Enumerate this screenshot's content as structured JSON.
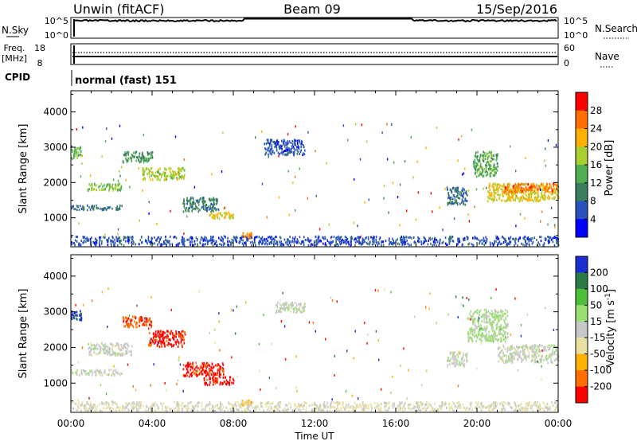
{
  "header": {
    "station": "Unwin (fitACF)",
    "beam": "Beam 09",
    "date": "15/Sep/2016"
  },
  "noise_panel": {
    "left_label": "N.Sky",
    "right_label": "N.Search",
    "left_ticks": [
      "10^5",
      "10^0"
    ],
    "right_ticks": [
      "10^5",
      "10^0"
    ]
  },
  "freq_panel": {
    "left_label_line1": "Freq.",
    "left_label_line2": "[MHz]",
    "right_label": "Nave",
    "left_ticks": [
      "18",
      "8"
    ],
    "right_ticks": [
      "60",
      "0"
    ]
  },
  "cpid": {
    "label": "CPID",
    "value": "normal (fast) 151"
  },
  "x_axis": {
    "label": "Time UT",
    "ticks": [
      "00:00",
      "04:00",
      "08:00",
      "12:00",
      "16:00",
      "20:00",
      "00:00"
    ]
  },
  "colors": {
    "power": [
      "#0000ff",
      "#2a52be",
      "#3a7d5c",
      "#4fae4f",
      "#a8d030",
      "#ffb000",
      "#ff7000",
      "#ff0000"
    ],
    "velocity": [
      "#1a2dd0",
      "#2a7a48",
      "#4fbf3a",
      "#9ae070",
      "#c8c8c8",
      "#e8e0a0",
      "#ffb000",
      "#ff7000",
      "#ff0000"
    ]
  },
  "chart_data": [
    {
      "type": "heatmap",
      "ylabel": "Slant Range [km]",
      "yticks": [
        1000,
        2000,
        3000,
        4000
      ],
      "ylim": [
        180,
        4600
      ],
      "xlim": [
        0,
        24
      ],
      "colorbar_label": "Power [dB]",
      "colorbar_ticks": [
        4,
        8,
        12,
        16,
        20,
        24,
        28
      ],
      "clim": [
        0,
        32
      ],
      "regions": [
        {
          "t0": 0.0,
          "t1": 0.5,
          "r0": 2700,
          "r1": 3050,
          "value": 14
        },
        {
          "t0": 0.0,
          "t1": 2.5,
          "r0": 1250,
          "r1": 1380,
          "value": 9
        },
        {
          "t0": 0.8,
          "t1": 2.5,
          "r0": 1800,
          "r1": 2000,
          "value": 16
        },
        {
          "t0": 2.5,
          "t1": 4.0,
          "r0": 2600,
          "r1": 2900,
          "value": 12
        },
        {
          "t0": 3.5,
          "t1": 5.6,
          "r0": 2100,
          "r1": 2450,
          "value": 18
        },
        {
          "t0": 5.5,
          "t1": 7.2,
          "r0": 1200,
          "r1": 1600,
          "value": 10
        },
        {
          "t0": 6.8,
          "t1": 8.0,
          "r0": 1000,
          "r1": 1200,
          "value": 20
        },
        {
          "t0": 8.4,
          "t1": 8.9,
          "r0": 450,
          "r1": 600,
          "value": 24
        },
        {
          "t0": 9.5,
          "t1": 11.5,
          "r0": 2800,
          "r1": 3250,
          "value": 6
        },
        {
          "t0": 0.0,
          "t1": 24.0,
          "r0": 250,
          "r1": 500,
          "value": 6
        },
        {
          "t0": 18.5,
          "t1": 19.5,
          "r0": 1400,
          "r1": 1900,
          "value": 8
        },
        {
          "t0": 19.8,
          "t1": 21.0,
          "r0": 2200,
          "r1": 2900,
          "value": 14
        },
        {
          "t0": 20.5,
          "t1": 24.0,
          "r0": 1500,
          "r1": 2000,
          "value": 20
        },
        {
          "t0": 21.3,
          "t1": 24.0,
          "r0": 1750,
          "r1": 2000,
          "value": 26
        }
      ]
    },
    {
      "type": "heatmap",
      "ylabel": "Slant Range [km]",
      "yticks": [
        1000,
        2000,
        3000,
        4000
      ],
      "ylim": [
        180,
        4600
      ],
      "xlim": [
        0,
        24
      ],
      "colorbar_label": "Velocity [m s^-1]",
      "colorbar_ticks": [
        200,
        100,
        50,
        15,
        -15,
        -50,
        -100,
        -200
      ],
      "clim": [
        -250,
        250
      ],
      "regions": [
        {
          "t0": 0.0,
          "t1": 0.5,
          "r0": 2800,
          "r1": 3050,
          "value": 220
        },
        {
          "t0": 0.0,
          "t1": 2.5,
          "r0": 1250,
          "r1": 1400,
          "value": 0
        },
        {
          "t0": 0.8,
          "t1": 3.0,
          "r0": 1800,
          "r1": 2150,
          "value": 0
        },
        {
          "t0": 2.5,
          "t1": 4.0,
          "r0": 2600,
          "r1": 2900,
          "value": -180
        },
        {
          "t0": 3.8,
          "t1": 5.6,
          "r0": 2050,
          "r1": 2500,
          "value": -220
        },
        {
          "t0": 5.5,
          "t1": 7.5,
          "r0": 1200,
          "r1": 1600,
          "value": -220
        },
        {
          "t0": 6.5,
          "t1": 8.0,
          "r0": 980,
          "r1": 1200,
          "value": -230
        },
        {
          "t0": 8.4,
          "t1": 8.9,
          "r0": 400,
          "r1": 550,
          "value": -80
        },
        {
          "t0": 10.0,
          "t1": 11.5,
          "r0": 3000,
          "r1": 3300,
          "value": 10
        },
        {
          "t0": 0.0,
          "t1": 24.0,
          "r0": 250,
          "r1": 500,
          "value": -30
        },
        {
          "t0": 18.5,
          "t1": 19.5,
          "r0": 1500,
          "r1": 1900,
          "value": 10
        },
        {
          "t0": 19.5,
          "t1": 21.5,
          "r0": 2200,
          "r1": 3100,
          "value": 40
        },
        {
          "t0": 21.0,
          "t1": 24.0,
          "r0": 1600,
          "r1": 2100,
          "value": 5
        }
      ]
    }
  ]
}
